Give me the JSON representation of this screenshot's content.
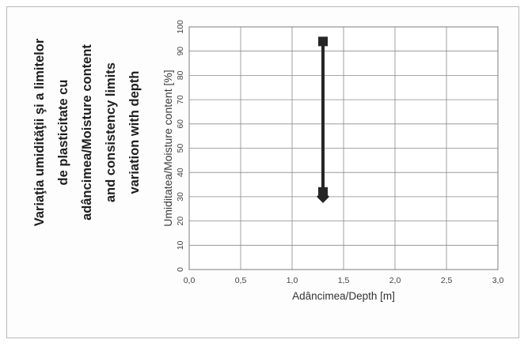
{
  "chart_data": {
    "type": "line",
    "title_lines": [
      "Variaţia umidităţii şi a limitelor",
      "de plasticitate cu",
      "adâncimea/Moisture content",
      "and consistency limits",
      "variation with depth"
    ],
    "ylabel": "Umiditatea/Moisture content  [%]",
    "xlabel": "Adâncimea/Depth  [m]",
    "ylim": [
      0,
      100
    ],
    "xlim": [
      0,
      3
    ],
    "y_ticks": [
      "0",
      "10",
      "20",
      "30",
      "40",
      "50",
      "60",
      "70",
      "80",
      "90",
      "100"
    ],
    "x_ticks": [
      "0,0",
      "0,5",
      "1,0",
      "1,5",
      "2,0",
      "2,5",
      "3,0"
    ],
    "grid": true,
    "series": [
      {
        "marker": "square",
        "color": "#262626",
        "points": [
          {
            "x": 1.3,
            "y": 94
          },
          {
            "x": 1.3,
            "y": 32
          }
        ]
      },
      {
        "marker": "diamond",
        "color": "#262626",
        "points": [
          {
            "x": 1.3,
            "y": 30
          }
        ]
      }
    ]
  }
}
